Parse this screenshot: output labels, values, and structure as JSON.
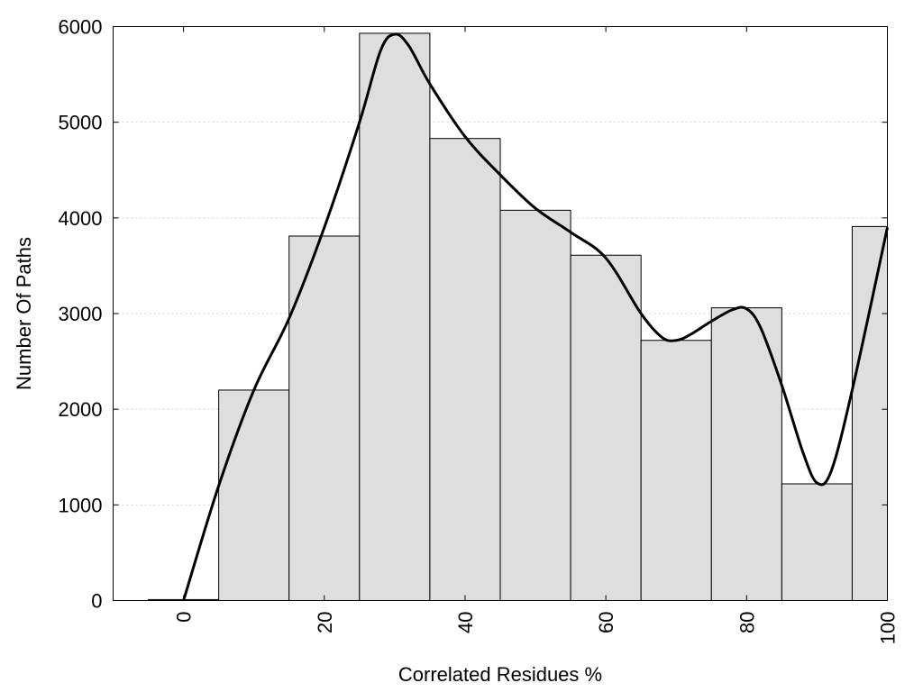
{
  "chart_data": {
    "type": "bar",
    "title": "",
    "xlabel": "Correlated Residues %",
    "ylabel": "Number Of Paths",
    "xlim": [
      -10,
      100
    ],
    "ylim": [
      0,
      6000
    ],
    "x_ticks": [
      0,
      20,
      40,
      60,
      80,
      100
    ],
    "y_ticks": [
      0,
      1000,
      2000,
      3000,
      4000,
      5000,
      6000
    ],
    "bar_width": 10,
    "grid": "horizontal dotted",
    "bars": [
      {
        "x": 0,
        "value": 10
      },
      {
        "x": 10,
        "value": 2200
      },
      {
        "x": 20,
        "value": 3810
      },
      {
        "x": 30,
        "value": 5930
      },
      {
        "x": 40,
        "value": 4830
      },
      {
        "x": 50,
        "value": 4080
      },
      {
        "x": 60,
        "value": 3610
      },
      {
        "x": 70,
        "value": 2720
      },
      {
        "x": 80,
        "value": 3060
      },
      {
        "x": 90,
        "value": 1220
      },
      {
        "x": 100,
        "value": 3910
      }
    ],
    "curve": {
      "x": [
        0,
        5,
        10,
        15,
        20,
        25,
        28,
        30,
        32,
        35,
        40,
        45,
        50,
        55,
        60,
        65,
        68,
        70,
        72,
        75,
        78,
        80,
        82,
        85,
        88,
        90,
        92,
        95,
        100
      ],
      "y": [
        0,
        1200,
        2200,
        2950,
        3900,
        5000,
        5750,
        5920,
        5800,
        5400,
        4850,
        4450,
        4100,
        3850,
        3580,
        3000,
        2750,
        2720,
        2780,
        2920,
        3040,
        3050,
        2850,
        2250,
        1550,
        1230,
        1350,
        2200,
        3900
      ]
    },
    "colors": {
      "bar_fill": "#dedede",
      "bar_stroke": "#000000",
      "curve": "#000000"
    }
  }
}
